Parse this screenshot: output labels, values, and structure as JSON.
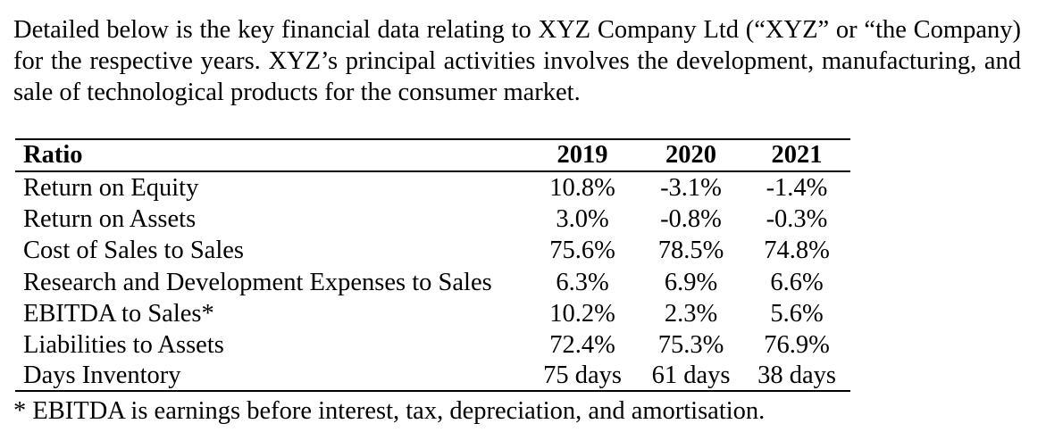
{
  "intro_text": "Detailed below is the key financial data relating to XYZ Company Ltd (“XYZ” or “the Company) for the respective years. XYZ’s principal activities involves the development, manufacturing, and sale of technological products for the consumer market.",
  "table": {
    "header": {
      "label": "Ratio",
      "years": [
        "2019",
        "2020",
        "2021"
      ]
    },
    "rows": [
      {
        "label": "Return on Equity",
        "values": [
          "10.8%",
          "-3.1%",
          "-1.4%"
        ]
      },
      {
        "label": "Return on Assets",
        "values": [
          "3.0%",
          "-0.8%",
          "-0.3%"
        ]
      },
      {
        "label": "Cost of Sales to Sales",
        "values": [
          "75.6%",
          "78.5%",
          "74.8%"
        ]
      },
      {
        "label": "Research and Development Expenses to Sales",
        "values": [
          "6.3%",
          "6.9%",
          "6.6%"
        ]
      },
      {
        "label": "EBITDA to Sales*",
        "values": [
          "10.2%",
          "2.3%",
          "5.6%"
        ]
      },
      {
        "label": "Liabilities to Assets",
        "values": [
          "72.4%",
          "75.3%",
          "76.9%"
        ]
      },
      {
        "label": "Days Inventory",
        "values": [
          "75 days",
          "61 days",
          "38 days"
        ]
      }
    ]
  },
  "footnote": "* EBITDA is earnings before interest, tax, depreciation, and amortisation."
}
